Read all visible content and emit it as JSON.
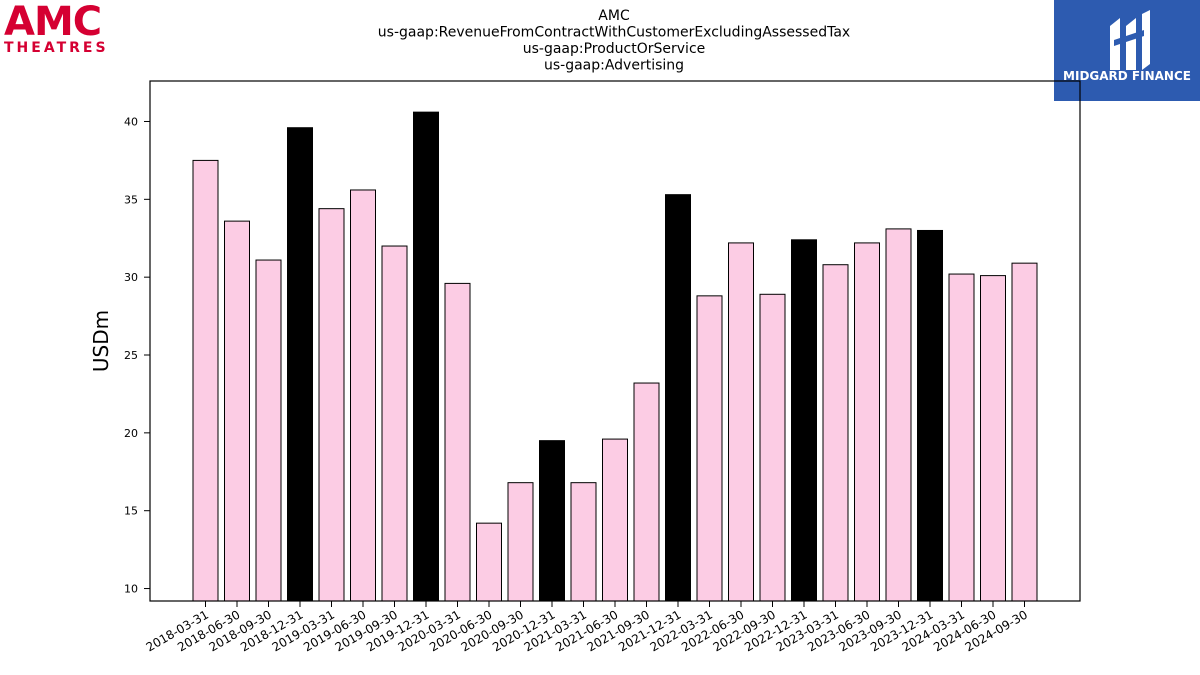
{
  "logos": {
    "left": {
      "line1": "AMC",
      "line2": "THEATRES",
      "color": "#d50032"
    },
    "right": {
      "text": "MIDGARD FINANCE",
      "background": "#2d5bb0"
    }
  },
  "chart_data": {
    "type": "bar",
    "title_lines": [
      "AMC",
      "us-gaap:RevenueFromContractWithCustomerExcludingAssessedTax",
      "us-gaap:ProductOrService",
      "us-gaap:Advertising"
    ],
    "xlabel": "",
    "ylabel": "USDm",
    "ylim": [
      9.2,
      42.6
    ],
    "yticks": [
      10,
      15,
      20,
      25,
      30,
      35,
      40
    ],
    "grid": false,
    "categories": [
      "2018-03-31",
      "2018-06-30",
      "2018-09-30",
      "2018-12-31",
      "2019-03-31",
      "2019-06-30",
      "2019-09-30",
      "2019-12-31",
      "2020-03-31",
      "2020-06-30",
      "2020-09-30",
      "2020-12-31",
      "2021-03-31",
      "2021-06-30",
      "2021-09-30",
      "2021-12-31",
      "2022-03-31",
      "2022-06-30",
      "2022-09-30",
      "2022-12-31",
      "2023-03-31",
      "2023-06-30",
      "2023-09-30",
      "2023-12-31",
      "2024-03-31",
      "2024-06-30",
      "2024-09-30"
    ],
    "values": [
      37.5,
      33.6,
      31.1,
      39.6,
      34.4,
      35.6,
      32.0,
      40.6,
      29.6,
      14.2,
      16.8,
      19.5,
      16.8,
      19.6,
      23.2,
      35.3,
      28.8,
      32.2,
      28.9,
      32.4,
      30.8,
      32.2,
      33.1,
      33.0,
      30.2,
      30.1,
      30.9
    ],
    "colors": {
      "quarter": "#fccce4",
      "year_end": "#000000",
      "edge": "#000000"
    }
  }
}
